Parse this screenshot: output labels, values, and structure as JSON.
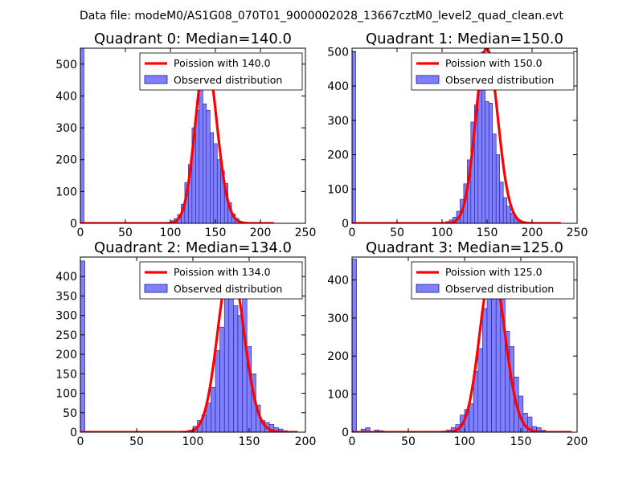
{
  "suptitle": "Data file: modeM0/AS1G08_070T01_9000002028_13667cztM0_level2_quad_clean.evt",
  "colors": {
    "bar_fill": "#8080ff",
    "bar_edge": "#1a1a8c",
    "fit_line": "#ff0000",
    "axis": "#000000",
    "background": "#ffffff"
  },
  "chart_data": [
    {
      "type": "bar",
      "title": "Quadrant 0: Median=140.0",
      "xlim": [
        0,
        250
      ],
      "ylim": [
        0,
        550
      ],
      "xticks": [
        0,
        50,
        100,
        150,
        200,
        250
      ],
      "yticks": [
        0,
        100,
        200,
        300,
        400,
        500
      ],
      "legend_position": "top-right",
      "legend": [
        "Poission with 140.0",
        "Observed distribution"
      ],
      "poisson_mean": 140.0,
      "fit_peak": 525,
      "fit_xrange": [
        0,
        215
      ],
      "bin_width": 4,
      "bins": [
        0,
        96,
        100,
        104,
        108,
        112,
        116,
        120,
        124,
        128,
        132,
        136,
        140,
        144,
        148,
        152,
        156,
        160,
        164,
        168,
        172,
        176,
        180,
        184,
        188
      ],
      "counts": [
        550,
        3,
        8,
        15,
        28,
        60,
        128,
        185,
        300,
        355,
        420,
        375,
        355,
        285,
        250,
        200,
        165,
        125,
        65,
        30,
        15,
        5,
        3,
        2,
        1
      ]
    },
    {
      "type": "bar",
      "title": "Quadrant 1: Median=150.0",
      "xlim": [
        0,
        250
      ],
      "ylim": [
        0,
        510
      ],
      "xticks": [
        0,
        50,
        100,
        150,
        200,
        250
      ],
      "yticks": [
        0,
        100,
        200,
        300,
        400,
        500
      ],
      "legend_position": "top-right",
      "legend": [
        "Poission with 150.0",
        "Observed distribution"
      ],
      "poisson_mean": 150.0,
      "fit_peak": 510,
      "fit_xrange": [
        0,
        232
      ],
      "bin_width": 4,
      "bins": [
        0,
        100,
        104,
        108,
        112,
        116,
        120,
        124,
        128,
        132,
        136,
        140,
        144,
        148,
        152,
        156,
        160,
        164,
        168,
        172,
        176,
        180,
        184,
        188,
        192,
        196,
        200
      ],
      "counts": [
        500,
        2,
        5,
        10,
        18,
        35,
        70,
        115,
        185,
        295,
        345,
        400,
        500,
        355,
        350,
        260,
        200,
        120,
        75,
        50,
        30,
        15,
        8,
        4,
        3,
        2,
        1
      ]
    },
    {
      "type": "bar",
      "title": "Quadrant 2: Median=134.0",
      "xlim": [
        0,
        200
      ],
      "ylim": [
        0,
        450
      ],
      "xticks": [
        0,
        50,
        100,
        150,
        200
      ],
      "yticks": [
        0,
        50,
        100,
        150,
        200,
        250,
        300,
        350,
        400
      ],
      "legend_position": "top-right",
      "legend": [
        "Poission with 134.0",
        "Observed distribution"
      ],
      "poisson_mean": 134.0,
      "fit_peak": 430,
      "fit_xrange": [
        0,
        193
      ],
      "bin_width": 4,
      "bins": [
        0,
        92,
        96,
        100,
        104,
        108,
        112,
        116,
        120,
        124,
        128,
        132,
        136,
        140,
        144,
        148,
        152,
        156,
        160,
        164,
        168,
        172,
        176,
        180,
        184
      ],
      "counts": [
        440,
        2,
        5,
        15,
        30,
        45,
        75,
        115,
        210,
        270,
        345,
        405,
        325,
        300,
        350,
        220,
        150,
        70,
        30,
        25,
        20,
        12,
        8,
        4,
        2
      ]
    },
    {
      "type": "bar",
      "title": "Quadrant 3: Median=125.0",
      "xlim": [
        0,
        200
      ],
      "ylim": [
        0,
        460
      ],
      "xticks": [
        0,
        50,
        100,
        150,
        200
      ],
      "yticks": [
        0,
        100,
        200,
        300,
        400
      ],
      "legend_position": "top-right",
      "legend": [
        "Poission with 125.0",
        "Observed distribution"
      ],
      "poisson_mean": 125.0,
      "fit_peak": 430,
      "fit_xrange": [
        0,
        195
      ],
      "bin_width": 4,
      "bins": [
        0,
        8,
        12,
        20,
        24,
        80,
        84,
        88,
        92,
        96,
        100,
        104,
        108,
        112,
        116,
        120,
        124,
        128,
        132,
        136,
        140,
        144,
        148,
        152,
        156,
        160,
        164,
        168
      ],
      "counts": [
        455,
        8,
        12,
        6,
        4,
        3,
        6,
        12,
        20,
        45,
        60,
        75,
        160,
        220,
        325,
        400,
        410,
        395,
        390,
        265,
        225,
        145,
        95,
        50,
        40,
        15,
        12,
        5
      ]
    }
  ]
}
